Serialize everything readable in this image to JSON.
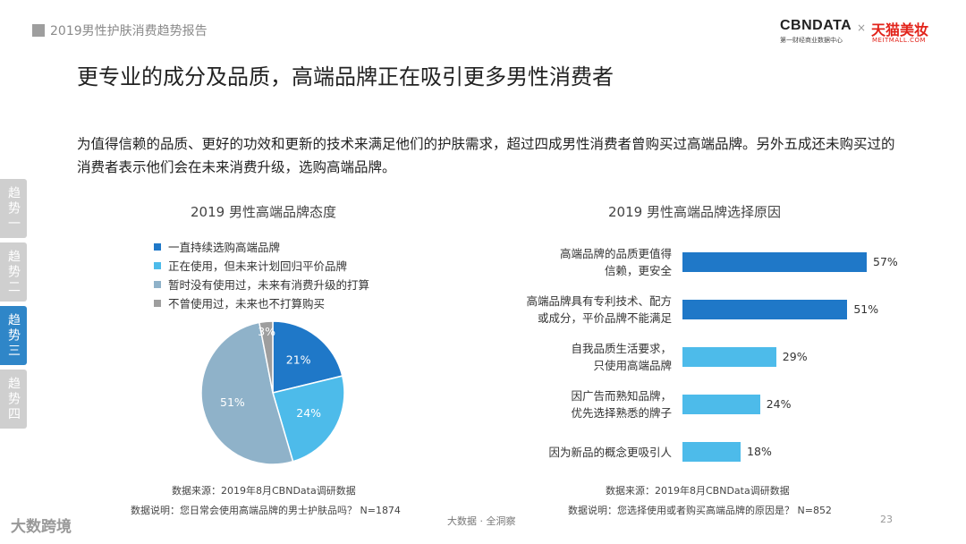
{
  "header": {
    "report_title": "2019男性护肤消费趋势报告"
  },
  "logos": {
    "cbn": "CBNDATA",
    "cbn_sub": "第一财经商业数据中心",
    "separator": "×",
    "tmall": "天猫美妆",
    "tmall_sub": "MEITMALL.COM"
  },
  "main_title": "更专业的成分及品质，高端品牌正在吸引更多男性消费者",
  "intro": "为值得信赖的品质、更好的功效和更新的技术来满足他们的护肤需求，超过四成男性消费者曾购买过高端品牌。另外五成还未购买过的消费者表示他们会在未来消费升级，选购高端品牌。",
  "side_tabs": [
    {
      "label": "趋势一",
      "active": false
    },
    {
      "label": "趋势二",
      "active": false
    },
    {
      "label": "趋势三",
      "active": true
    },
    {
      "label": "趋势四",
      "active": false
    }
  ],
  "chart_data": [
    {
      "type": "pie",
      "title": "2019 男性高端品牌态度",
      "categories": [
        "一直持续选购高端品牌",
        "正在使用，但未来计划回归平价品牌",
        "暂时没有使用过，未来有消费升级的打算",
        "不曾使用过，未来也不打算购买"
      ],
      "values": [
        21,
        24,
        51,
        3
      ],
      "value_labels": [
        "21%",
        "24%",
        "51%",
        "3%"
      ],
      "colors": [
        "#1f78c8",
        "#4dbbea",
        "#8fb2c9",
        "#9e9e9e"
      ],
      "legend_position": "top-left"
    },
    {
      "type": "bar",
      "orientation": "horizontal",
      "title": "2019 男性高端品牌选择原因",
      "categories": [
        "高端品牌的品质更值得\n信赖，更安全",
        "高端品牌具有专利技术、配方\n或成分，平价品牌不能满足",
        "自我品质生活要求，\n只使用高端品牌",
        "因广告而熟知品牌，\n优先选择熟悉的牌子",
        "因为新品的概念更吸引人"
      ],
      "values": [
        57,
        51,
        29,
        24,
        18
      ],
      "value_labels": [
        "57%",
        "51%",
        "29%",
        "24%",
        "18%"
      ],
      "colors": [
        "#1f78c8",
        "#1f78c8",
        "#4dbbea",
        "#4dbbea",
        "#4dbbea"
      ],
      "xlim": [
        0,
        60
      ]
    }
  ],
  "footnotes": {
    "left_source": "数据来源：2019年8月CBNData调研数据",
    "left_note": "数据说明：您日常会使用高端品牌的男士护肤品吗？  N=1874",
    "right_source": "数据来源：2019年8月CBNData调研数据",
    "right_note": "数据说明：您选择使用或者购买高端品牌的原因是？  N=852"
  },
  "bottom": {
    "center_text": "大数据 · 全洞察",
    "page_number": "23",
    "brand": "大数跨境"
  }
}
